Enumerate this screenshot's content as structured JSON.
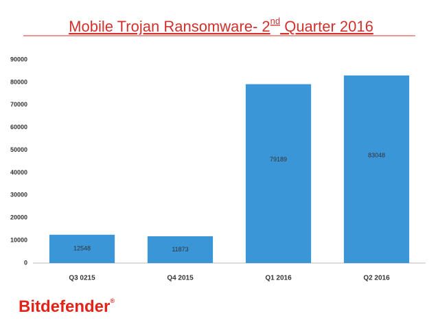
{
  "chart_data": {
    "type": "bar",
    "title": [
      "Mobile Trojan Ransomware- 2",
      "nd",
      " Quarter 2016"
    ],
    "categories": [
      "Q3 0215",
      "Q4 2015",
      "Q1 2016",
      "Q2 2016"
    ],
    "values": [
      12548,
      11873,
      79189,
      83048
    ],
    "color": "#3a96d6",
    "ylim": [
      0,
      90000
    ],
    "yticks": [
      0,
      10000,
      20000,
      30000,
      40000,
      50000,
      60000,
      70000,
      80000,
      90000
    ],
    "grid": false
  },
  "brand": {
    "name": "Bitdefender",
    "mark": "®"
  }
}
